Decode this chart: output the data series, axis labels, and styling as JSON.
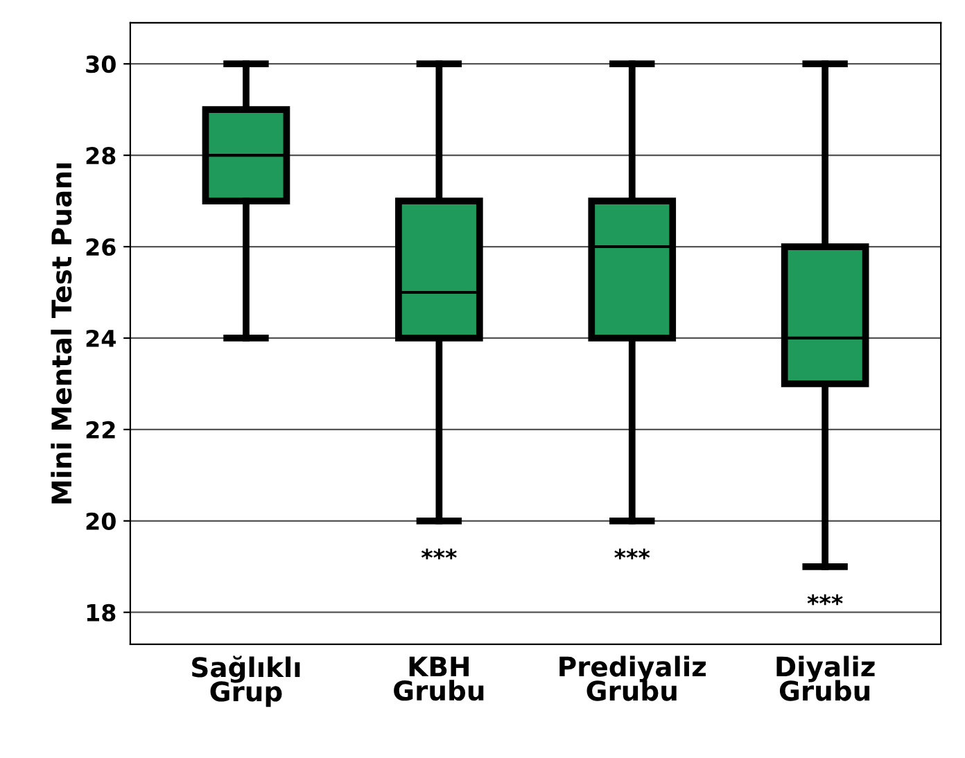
{
  "chart_data": {
    "type": "box",
    "ylabel": "Mini Mental Test Puanı",
    "categories": [
      "Sağlıklı\nGrup",
      "KBH\nGrubu",
      "Prediyaliz\nGrubu",
      "Diyaliz\nGrubu"
    ],
    "boxes": [
      {
        "low": 24,
        "q1": 27,
        "median": 28,
        "q3": 29,
        "high": 30
      },
      {
        "low": 20,
        "q1": 24,
        "median": 25,
        "q3": 27,
        "high": 30
      },
      {
        "low": 20,
        "q1": 24,
        "median": 26,
        "q3": 27,
        "high": 30
      },
      {
        "low": 19,
        "q1": 23,
        "median": 24,
        "q3": 26,
        "high": 30
      }
    ],
    "color": "#1f9a5a",
    "ylim": [
      17.3,
      30.9
    ],
    "yticks": [
      18,
      20,
      22,
      24,
      26,
      28,
      30
    ],
    "grid": "y",
    "annotations": [
      "***",
      "***",
      "***"
    ]
  }
}
